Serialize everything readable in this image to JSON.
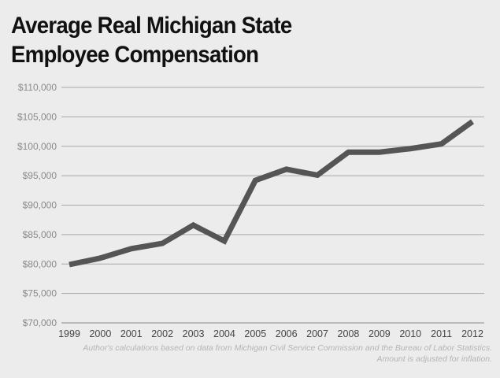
{
  "chart_data": {
    "type": "line",
    "title": "Average Real Michigan State Employee Compensation",
    "title_lines": [
      "Average Real Michigan State",
      "Employee Compensation"
    ],
    "xlabel": "",
    "ylabel": "",
    "categories": [
      "1999",
      "2000",
      "2001",
      "2002",
      "2003",
      "2004",
      "2005",
      "2006",
      "2007",
      "2008",
      "2009",
      "2010",
      "2011",
      "2012"
    ],
    "series": [
      {
        "name": "Average Real Compensation",
        "values": [
          79900,
          81000,
          82600,
          83500,
          86600,
          83900,
          94200,
          96100,
          95100,
          99000,
          99000,
          99600,
          100400,
          104200
        ],
        "color": "#555555"
      }
    ],
    "ylim": [
      70000,
      110000
    ],
    "yticks": [
      70000,
      75000,
      80000,
      85000,
      90000,
      95000,
      100000,
      105000,
      110000
    ],
    "ytick_labels": [
      "$70,000",
      "$75,000",
      "$80,000",
      "$85,000",
      "$90,000",
      "$95,000",
      "$100,000",
      "$105,000",
      "$110,000"
    ],
    "grid": true,
    "legend": "none",
    "notes": [
      "Author's calculations based on data from Michigan Civil Service Commission and the Bureau of Labor Statistics.",
      "Amount is adjusted for inflation."
    ]
  }
}
